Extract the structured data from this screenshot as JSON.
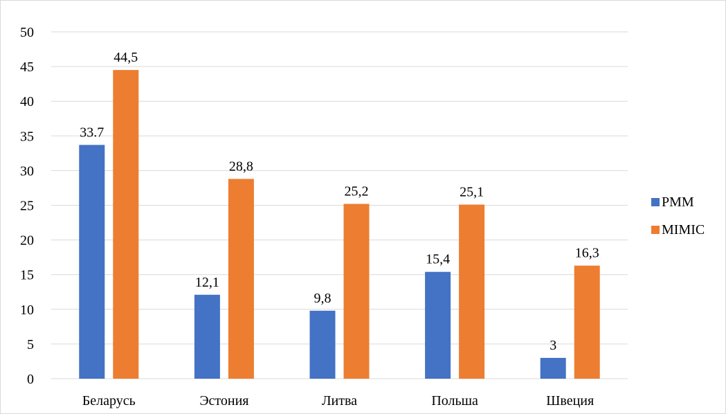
{
  "chart_data": {
    "type": "bar",
    "title": "",
    "xlabel": "",
    "ylabel": "",
    "categories": [
      "Беларусь",
      "Эстония",
      "Литва",
      "Польша",
      "Швеция"
    ],
    "series": [
      {
        "name": "PMM",
        "color": "#4472c4",
        "values": [
          33.7,
          12.1,
          9.8,
          15.4,
          3
        ],
        "labels": [
          "33.7",
          "12,1",
          "9,8",
          "15,4",
          "3"
        ]
      },
      {
        "name": "MIMIC",
        "color": "#ed7d31",
        "values": [
          44.5,
          28.8,
          25.2,
          25.1,
          16.3
        ],
        "labels": [
          "44,5",
          "28,8",
          "25,2",
          "25,1",
          "16,3"
        ]
      }
    ],
    "ylim": [
      0,
      50
    ],
    "yticks": [
      0,
      5,
      10,
      15,
      20,
      25,
      30,
      35,
      40,
      45,
      50
    ],
    "grid": true,
    "legend_position": "right"
  }
}
